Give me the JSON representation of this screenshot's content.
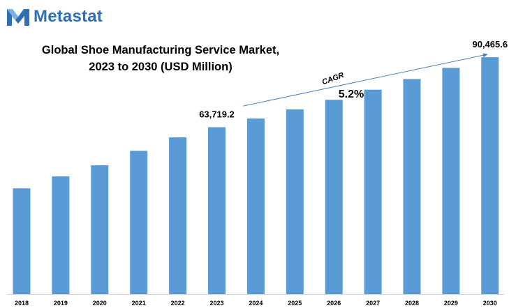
{
  "brand": {
    "name": "Metastat",
    "logo_icon": "metastat-m-logo-icon",
    "color": "#2f6fb5"
  },
  "chart_data": {
    "type": "bar",
    "title_line1": "Global Shoe Manufacturing Service Market,",
    "title_line2": "2023 to 2030 (USD Million)",
    "categories": [
      "2018",
      "2019",
      "2020",
      "2021",
      "2022",
      "2023",
      "2024",
      "2025",
      "2026",
      "2027",
      "2028",
      "2029",
      "2030"
    ],
    "values": [
      40380,
      44930,
      49190,
      54690,
      59850,
      63719.2,
      67030,
      70520,
      74190,
      78050,
      82110,
      86380,
      90465.6
    ],
    "data_labels": [
      {
        "category": "2023",
        "text": "63,719.2"
      },
      {
        "category": "2030",
        "text": "90,465.6"
      }
    ],
    "annotation": {
      "label": "CAGR",
      "value": "5.2%"
    },
    "bar_color": "#5b9bd5",
    "arrow_color": "#4a7fb5",
    "ylim": [
      0,
      95000
    ]
  }
}
